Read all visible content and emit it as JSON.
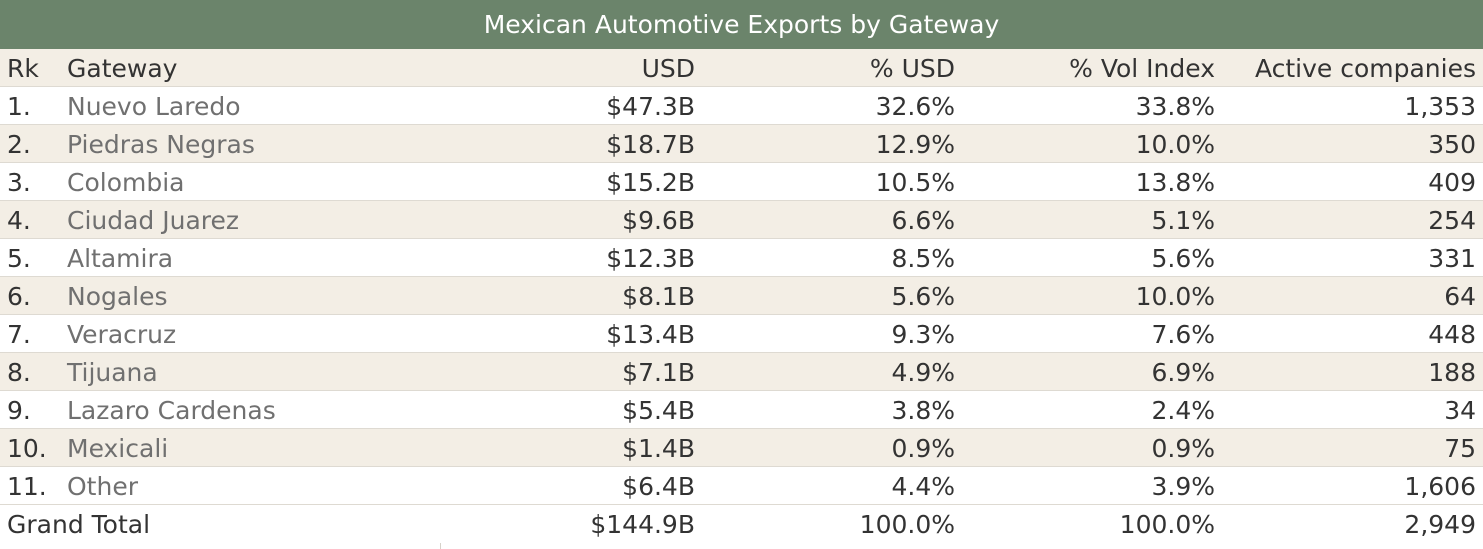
{
  "chart_data": {
    "type": "table",
    "title": "Mexican Automotive Exports by Gateway",
    "columns": [
      "Rk",
      "Gateway",
      "USD",
      "% USD",
      "% Vol Index",
      "Active companies"
    ],
    "rows": [
      {
        "rank": "1.",
        "gateway": "Nuevo Laredo",
        "usd": "$47.3B",
        "pct_usd": "32.6%",
        "pct_vol": "33.8%",
        "active": "1,353"
      },
      {
        "rank": "2.",
        "gateway": "Piedras Negras",
        "usd": "$18.7B",
        "pct_usd": "12.9%",
        "pct_vol": "10.0%",
        "active": "350"
      },
      {
        "rank": "3.",
        "gateway": "Colombia",
        "usd": "$15.2B",
        "pct_usd": "10.5%",
        "pct_vol": "13.8%",
        "active": "409"
      },
      {
        "rank": "4.",
        "gateway": "Ciudad Juarez",
        "usd": "$9.6B",
        "pct_usd": "6.6%",
        "pct_vol": "5.1%",
        "active": "254"
      },
      {
        "rank": "5.",
        "gateway": "Altamira",
        "usd": "$12.3B",
        "pct_usd": "8.5%",
        "pct_vol": "5.6%",
        "active": "331"
      },
      {
        "rank": "6.",
        "gateway": "Nogales",
        "usd": "$8.1B",
        "pct_usd": "5.6%",
        "pct_vol": "10.0%",
        "active": "64"
      },
      {
        "rank": "7.",
        "gateway": "Veracruz",
        "usd": "$13.4B",
        "pct_usd": "9.3%",
        "pct_vol": "7.6%",
        "active": "448"
      },
      {
        "rank": "8.",
        "gateway": "Tijuana",
        "usd": "$7.1B",
        "pct_usd": "4.9%",
        "pct_vol": "6.9%",
        "active": "188"
      },
      {
        "rank": "9.",
        "gateway": "Lazaro Cardenas",
        "usd": "$5.4B",
        "pct_usd": "3.8%",
        "pct_vol": "2.4%",
        "active": "34"
      },
      {
        "rank": "10.",
        "gateway": "Mexicali",
        "usd": "$1.4B",
        "pct_usd": "0.9%",
        "pct_vol": "0.9%",
        "active": "75"
      },
      {
        "rank": "11.",
        "gateway": "Other",
        "usd": "$6.4B",
        "pct_usd": "4.4%",
        "pct_vol": "3.9%",
        "active": "1,606"
      }
    ],
    "total": {
      "label": "Grand Total",
      "usd": "$144.9B",
      "pct_usd": "100.0%",
      "pct_vol": "100.0%",
      "active": "2,949"
    }
  }
}
